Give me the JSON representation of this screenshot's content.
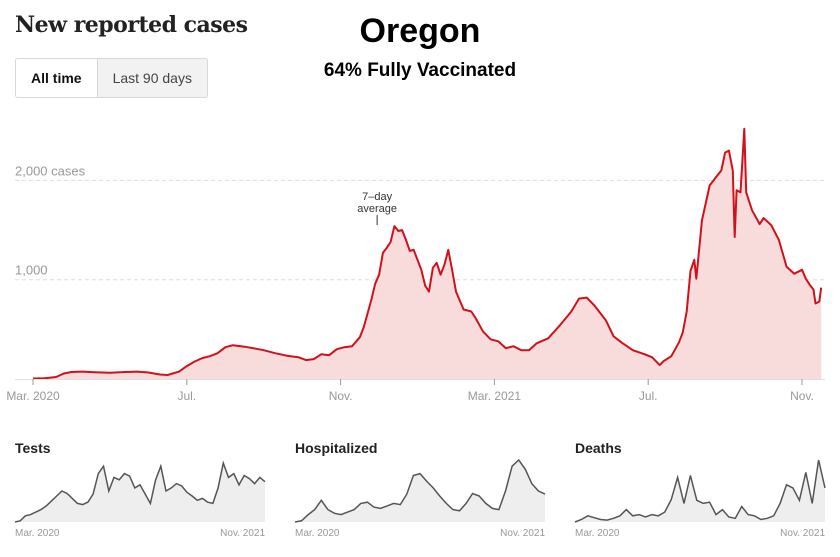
{
  "header": {
    "title": "New reported cases",
    "state": "Oregon",
    "vaccination": "64% Fully Vaccinated"
  },
  "toggle": {
    "options": [
      {
        "label": "All time",
        "active": true
      },
      {
        "label": "Last 90 days",
        "active": false
      }
    ]
  },
  "colors": {
    "line": "#d0111b",
    "fill": "#f8dcdc",
    "grid": "#dddddd",
    "axis_text": "#999999",
    "small_line": "#555555",
    "small_fill": "#eeeeee"
  },
  "chart_data": [
    {
      "type": "area",
      "title": "New reported cases",
      "ylabel": "cases",
      "y_ticks": [
        {
          "value": 2000,
          "label": "2,000 cases"
        },
        {
          "value": 1000,
          "label": "1,000"
        }
      ],
      "ylim": [
        0,
        2600
      ],
      "x_ticks": [
        {
          "month": 0,
          "label": "Mar. 2020"
        },
        {
          "month": 4,
          "label": "Jul."
        },
        {
          "month": 8,
          "label": "Nov."
        },
        {
          "month": 12,
          "label": "Mar. 2021"
        },
        {
          "month": 16,
          "label": "Jul."
        },
        {
          "month": 20,
          "label": "Nov."
        }
      ],
      "xlim_months": [
        0,
        20.5
      ],
      "grid": true,
      "annotation": {
        "text_lines": [
          "7–day",
          "average"
        ],
        "month": 8.95,
        "value": 1530
      },
      "series": [
        {
          "name": "7-day average",
          "points": [
            [
              0.0,
              5
            ],
            [
              0.3,
              8
            ],
            [
              0.6,
              20
            ],
            [
              0.8,
              55
            ],
            [
              1.0,
              70
            ],
            [
              1.3,
              75
            ],
            [
              1.6,
              68
            ],
            [
              2.0,
              62
            ],
            [
              2.4,
              70
            ],
            [
              2.7,
              75
            ],
            [
              3.0,
              65
            ],
            [
              3.3,
              45
            ],
            [
              3.5,
              40
            ],
            [
              3.8,
              75
            ],
            [
              4.0,
              130
            ],
            [
              4.2,
              175
            ],
            [
              4.4,
              210
            ],
            [
              4.6,
              230
            ],
            [
              4.8,
              260
            ],
            [
              5.0,
              320
            ],
            [
              5.2,
              340
            ],
            [
              5.5,
              325
            ],
            [
              5.8,
              305
            ],
            [
              6.0,
              290
            ],
            [
              6.3,
              260
            ],
            [
              6.6,
              235
            ],
            [
              6.9,
              220
            ],
            [
              7.1,
              190
            ],
            [
              7.3,
              200
            ],
            [
              7.5,
              250
            ],
            [
              7.7,
              240
            ],
            [
              7.9,
              300
            ],
            [
              8.1,
              320
            ],
            [
              8.3,
              330
            ],
            [
              8.5,
              420
            ],
            [
              8.6,
              520
            ],
            [
              8.8,
              800
            ],
            [
              8.9,
              960
            ],
            [
              9.0,
              1050
            ],
            [
              9.1,
              1270
            ],
            [
              9.2,
              1320
            ],
            [
              9.3,
              1380
            ],
            [
              9.4,
              1540
            ],
            [
              9.5,
              1490
            ],
            [
              9.6,
              1500
            ],
            [
              9.7,
              1400
            ],
            [
              9.8,
              1290
            ],
            [
              9.9,
              1300
            ],
            [
              10.1,
              1100
            ],
            [
              10.2,
              940
            ],
            [
              10.3,
              880
            ],
            [
              10.4,
              1120
            ],
            [
              10.5,
              1170
            ],
            [
              10.6,
              1050
            ],
            [
              10.7,
              1150
            ],
            [
              10.8,
              1300
            ],
            [
              10.9,
              1100
            ],
            [
              11.0,
              880
            ],
            [
              11.2,
              700
            ],
            [
              11.4,
              680
            ],
            [
              11.5,
              620
            ],
            [
              11.7,
              480
            ],
            [
              11.9,
              400
            ],
            [
              12.1,
              380
            ],
            [
              12.3,
              310
            ],
            [
              12.5,
              330
            ],
            [
              12.7,
              290
            ],
            [
              12.9,
              290
            ],
            [
              13.1,
              360
            ],
            [
              13.4,
              410
            ],
            [
              13.7,
              540
            ],
            [
              14.0,
              680
            ],
            [
              14.2,
              810
            ],
            [
              14.4,
              820
            ],
            [
              14.6,
              740
            ],
            [
              14.9,
              590
            ],
            [
              15.1,
              430
            ],
            [
              15.3,
              370
            ],
            [
              15.6,
              290
            ],
            [
              15.9,
              250
            ],
            [
              16.1,
              220
            ],
            [
              16.3,
              140
            ],
            [
              16.4,
              180
            ],
            [
              16.6,
              230
            ],
            [
              16.8,
              370
            ],
            [
              16.9,
              470
            ],
            [
              17.0,
              680
            ],
            [
              17.1,
              1090
            ],
            [
              17.2,
              1200
            ],
            [
              17.25,
              1010
            ],
            [
              17.4,
              1600
            ],
            [
              17.6,
              1950
            ],
            [
              17.8,
              2050
            ],
            [
              17.9,
              2100
            ],
            [
              18.0,
              2280
            ],
            [
              18.1,
              2300
            ],
            [
              18.2,
              2100
            ],
            [
              18.25,
              1430
            ],
            [
              18.3,
              1900
            ],
            [
              18.4,
              1880
            ],
            [
              18.5,
              2520
            ],
            [
              18.55,
              1880
            ],
            [
              18.7,
              1700
            ],
            [
              18.9,
              1560
            ],
            [
              19.0,
              1620
            ],
            [
              19.2,
              1550
            ],
            [
              19.4,
              1400
            ],
            [
              19.6,
              1130
            ],
            [
              19.8,
              1060
            ],
            [
              20.0,
              1100
            ],
            [
              20.1,
              1010
            ],
            [
              20.2,
              950
            ],
            [
              20.3,
              900
            ],
            [
              20.35,
              760
            ],
            [
              20.45,
              780
            ],
            [
              20.5,
              920
            ]
          ]
        }
      ]
    },
    {
      "type": "area",
      "title": "Tests",
      "x_labels": [
        "Mar. 2020",
        "Nov. 2021"
      ],
      "ylim": [
        0,
        1
      ],
      "values": [
        0.0,
        0.02,
        0.1,
        0.12,
        0.16,
        0.2,
        0.26,
        0.34,
        0.42,
        0.5,
        0.46,
        0.38,
        0.3,
        0.28,
        0.32,
        0.45,
        0.78,
        0.9,
        0.5,
        0.72,
        0.68,
        0.78,
        0.74,
        0.55,
        0.6,
        0.45,
        0.3,
        0.68,
        0.9,
        0.5,
        0.55,
        0.62,
        0.58,
        0.48,
        0.42,
        0.35,
        0.38,
        0.32,
        0.3,
        0.55,
        0.95,
        0.72,
        0.78,
        0.6,
        0.75,
        0.7,
        0.62,
        0.72,
        0.65
      ]
    },
    {
      "type": "area",
      "title": "Hospitalized",
      "x_labels": [
        "Mar. 2020",
        "Nov. 2021"
      ],
      "ylim": [
        0,
        1
      ],
      "values": [
        0.0,
        0.02,
        0.12,
        0.2,
        0.35,
        0.2,
        0.14,
        0.12,
        0.16,
        0.2,
        0.3,
        0.32,
        0.24,
        0.22,
        0.26,
        0.3,
        0.28,
        0.45,
        0.75,
        0.78,
        0.66,
        0.55,
        0.42,
        0.3,
        0.2,
        0.18,
        0.3,
        0.46,
        0.42,
        0.3,
        0.22,
        0.2,
        0.5,
        0.9,
        1.0,
        0.85,
        0.62,
        0.5,
        0.45
      ]
    },
    {
      "type": "area",
      "title": "Deaths",
      "x_labels": [
        "Mar. 2020",
        "Nov. 2021"
      ],
      "ylim": [
        0,
        1
      ],
      "values": [
        0.0,
        0.04,
        0.1,
        0.07,
        0.04,
        0.03,
        0.06,
        0.1,
        0.2,
        0.1,
        0.12,
        0.08,
        0.12,
        0.1,
        0.16,
        0.36,
        0.72,
        0.3,
        0.75,
        0.35,
        0.3,
        0.32,
        0.12,
        0.2,
        0.08,
        0.06,
        0.25,
        0.12,
        0.1,
        0.04,
        0.06,
        0.1,
        0.3,
        0.6,
        0.55,
        0.35,
        0.8,
        0.3,
        1.0,
        0.55
      ]
    }
  ]
}
